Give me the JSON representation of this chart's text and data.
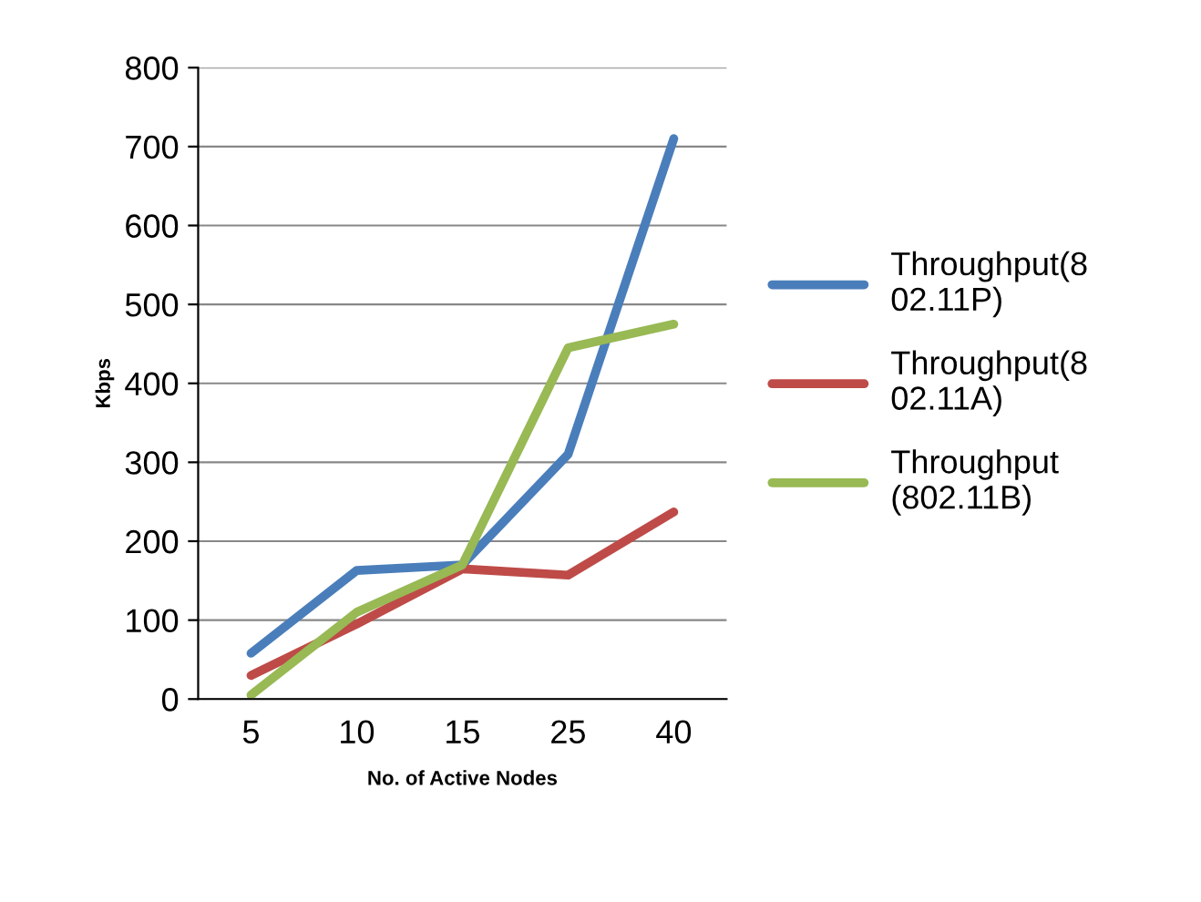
{
  "chart_data": {
    "type": "line",
    "xlabel": "No. of Active Nodes",
    "ylabel": "Kbps",
    "categories": [
      "5",
      "10",
      "15",
      "25",
      "40"
    ],
    "series": [
      {
        "name": "Throughput(8\n02.11P)",
        "color": "#4a7ebb",
        "values": [
          58,
          163,
          170,
          310,
          710
        ]
      },
      {
        "name": "Throughput(8\n02.11A)",
        "color": "#be4b48",
        "values": [
          30,
          95,
          165,
          157,
          237
        ]
      },
      {
        "name": "Throughput\n(802.11B)",
        "color": "#98b954",
        "values": [
          5,
          110,
          170,
          445,
          475
        ]
      }
    ],
    "ylim": [
      0,
      800
    ],
    "yticks": [
      0,
      100,
      200,
      300,
      400,
      500,
      600,
      700,
      800
    ],
    "grid": "y",
    "legend": "right",
    "marker": "none",
    "line_style": "solid"
  }
}
